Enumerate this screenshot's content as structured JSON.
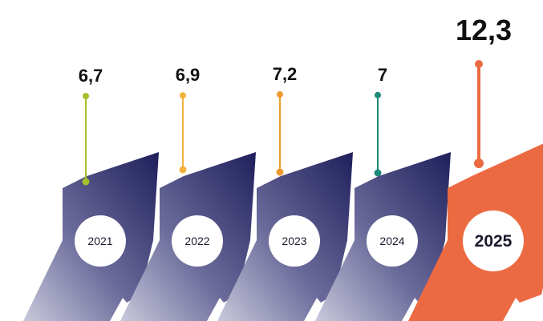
{
  "chart_data": {
    "type": "bar",
    "title": "",
    "xlabel": "",
    "ylabel": "",
    "categories": [
      "2021",
      "2022",
      "2023",
      "2024",
      "2025"
    ],
    "values": [
      "6,7",
      "6,9",
      "7,2",
      "7",
      "12,3"
    ],
    "numeric_values": [
      6.7,
      6.9,
      7.2,
      7.0,
      12.3
    ],
    "highlight_index": 4,
    "legend": "none",
    "grid": false
  },
  "colors": {
    "arrow_dark": "#1f1f5c",
    "arrow_light": "#c9c9dc",
    "highlight": "#ec6a42",
    "markers": [
      "#a6bf2a",
      "#f2b13a",
      "#ee9a2e",
      "#1e8a7a",
      "#ec6a42"
    ]
  }
}
